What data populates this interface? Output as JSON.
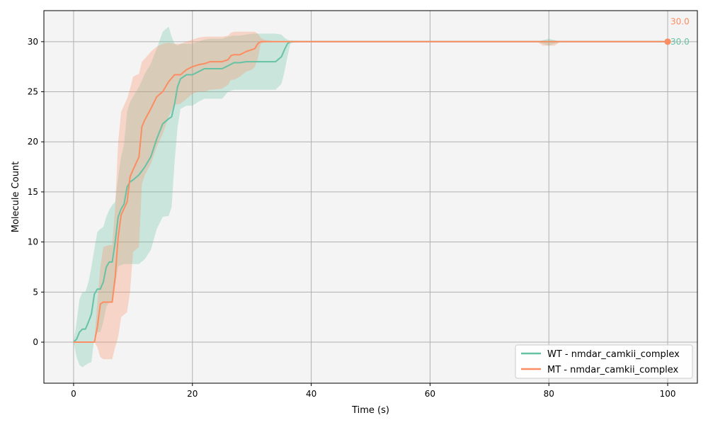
{
  "chart_data": {
    "type": "line",
    "title": "",
    "xlabel": "Time (s)",
    "ylabel": "Molecule Count",
    "xlim": [
      -5,
      105
    ],
    "ylim": [
      -4.1,
      33.1
    ],
    "xticks": [
      0,
      20,
      40,
      60,
      80,
      100
    ],
    "yticks": [
      0,
      5,
      10,
      15,
      20,
      25,
      30
    ],
    "grid": true,
    "legend_position": "bottom-right",
    "series": [
      {
        "name": "WT - nmdar_camkii_complex",
        "color": "#66c2a5",
        "x": [
          0,
          0.5,
          1,
          1.5,
          2,
          2.5,
          3,
          3.5,
          4,
          4.5,
          5,
          5.5,
          6,
          6.5,
          7,
          7.5,
          8,
          8.5,
          9,
          9.5,
          10,
          11,
          12,
          13,
          14,
          15,
          16,
          16.5,
          17,
          17.5,
          18,
          19,
          20,
          21,
          22,
          23,
          25,
          26,
          27,
          28,
          29,
          30,
          31,
          32,
          33,
          34,
          35,
          35.5,
          36,
          36.5,
          37,
          40,
          50,
          60,
          70,
          78,
          80,
          82,
          90,
          100
        ],
        "y": [
          0,
          0.3,
          1,
          1.3,
          1.3,
          2,
          2.8,
          4.8,
          5.3,
          5.3,
          6,
          7.5,
          8,
          8,
          10,
          12.5,
          13.3,
          13.8,
          15.5,
          16,
          16.2,
          16.7,
          17.5,
          18.5,
          20.3,
          21.8,
          22.3,
          22.5,
          23.8,
          25.5,
          26.3,
          26.7,
          26.7,
          27,
          27.3,
          27.3,
          27.3,
          27.6,
          27.9,
          27.9,
          28,
          28,
          28,
          28,
          28,
          28,
          28.5,
          29.2,
          29.8,
          30,
          30,
          30,
          30,
          30,
          30,
          30,
          30,
          30,
          30,
          30
        ],
        "lower": [
          0,
          -1.5,
          -2.3,
          -2.5,
          -2.3,
          -2.1,
          -2,
          0.5,
          1,
          1,
          2,
          3.5,
          4,
          4,
          5.7,
          7.6,
          7.7,
          7.8,
          7.8,
          7.8,
          7.8,
          7.8,
          8.3,
          9.2,
          11.3,
          12.5,
          12.6,
          13.5,
          18,
          21.5,
          23.3,
          23.6,
          23.6,
          24,
          24.3,
          24.3,
          24.3,
          25,
          25.2,
          25.2,
          25.2,
          25.2,
          25.2,
          25.2,
          25.2,
          25.2,
          25.8,
          27,
          28.5,
          29.8,
          29.9,
          30,
          30,
          30,
          30,
          30,
          29.6,
          30,
          30,
          30
        ],
        "upper": [
          0,
          2,
          4.3,
          5,
          5,
          6,
          7.5,
          9.3,
          11,
          11.3,
          11.5,
          12.5,
          13.2,
          13.7,
          14,
          16.5,
          18.5,
          19.8,
          23,
          24,
          24.5,
          25.5,
          26.8,
          27.8,
          29.3,
          31,
          31.5,
          30.5,
          29.8,
          29.6,
          29.8,
          29.8,
          29.8,
          30,
          30.2,
          30.3,
          30.3,
          30.5,
          30.6,
          30.6,
          30.7,
          30.8,
          30.8,
          30.8,
          30.8,
          30.8,
          30.7,
          30.4,
          30.2,
          30.1,
          30.1,
          30,
          30,
          30,
          30,
          30,
          30.3,
          30,
          30,
          30
        ]
      },
      {
        "name": "MT - nmdar_camkii_complex",
        "color": "#fc8d62",
        "x": [
          0,
          1,
          2,
          3,
          3.5,
          4,
          4.5,
          5,
          6,
          6.5,
          7,
          7.5,
          8,
          9,
          9.5,
          10,
          11,
          11.5,
          12,
          13,
          14,
          15,
          16,
          17,
          18,
          19,
          20,
          21,
          22,
          23,
          25,
          26,
          26.5,
          27,
          28,
          29,
          30,
          30.5,
          31,
          31.5,
          32,
          33,
          35,
          37,
          40,
          50,
          60,
          70,
          78,
          79,
          80,
          81,
          82,
          90,
          100
        ],
        "y": [
          0,
          0,
          0,
          0,
          0,
          1.5,
          3.8,
          4,
          4,
          4,
          6.5,
          10.5,
          12.7,
          14,
          16.5,
          17.2,
          18.5,
          21.5,
          22.2,
          23.3,
          24.5,
          25,
          26,
          26.7,
          26.7,
          27.2,
          27.5,
          27.7,
          27.8,
          28,
          28,
          28.2,
          28.6,
          28.7,
          28.7,
          29,
          29.2,
          29.3,
          29.8,
          30,
          30,
          30,
          30,
          30,
          30,
          30,
          30,
          30,
          30,
          30,
          30,
          30,
          30,
          30,
          30
        ],
        "lower": [
          0,
          0,
          0,
          0,
          0,
          -0.5,
          -1.5,
          -1.7,
          -1.7,
          -1.7,
          -0.5,
          0.5,
          2.5,
          3,
          5,
          9,
          9.5,
          15.8,
          16.7,
          17.8,
          19.5,
          20.8,
          22.5,
          23.7,
          23.8,
          24.3,
          24.8,
          25,
          25,
          25.2,
          25.3,
          25.7,
          26.2,
          26.2,
          26.5,
          27,
          27.2,
          27.5,
          28.3,
          29.8,
          29.9,
          30,
          30,
          30,
          30,
          30,
          30,
          30,
          30,
          29.6,
          29.6,
          29.6,
          30,
          30,
          30
        ],
        "upper": [
          0,
          0,
          0,
          0,
          0,
          4,
          7.5,
          9.5,
          9.7,
          9.7,
          13.5,
          20,
          23,
          24.3,
          25.3,
          26.5,
          26.8,
          28,
          28.3,
          29,
          29.5,
          29.8,
          29.9,
          29.8,
          29.8,
          30,
          30.2,
          30.4,
          30.5,
          30.5,
          30.5,
          30.6,
          30.9,
          31,
          31,
          31,
          31,
          31,
          30.8,
          30.4,
          30.2,
          30.1,
          30,
          30,
          30,
          30,
          30,
          30,
          30,
          30.1,
          30.1,
          30.1,
          30,
          30,
          30
        ]
      }
    ],
    "annotations": [
      {
        "text": "30.0",
        "color": "#fc8d62",
        "x": 100,
        "y": 32.0
      },
      {
        "text": "30.0",
        "color": "#66c2a5",
        "x": 100,
        "y": 30.0
      }
    ],
    "end_marker": {
      "x": 100,
      "y": 30
    }
  }
}
